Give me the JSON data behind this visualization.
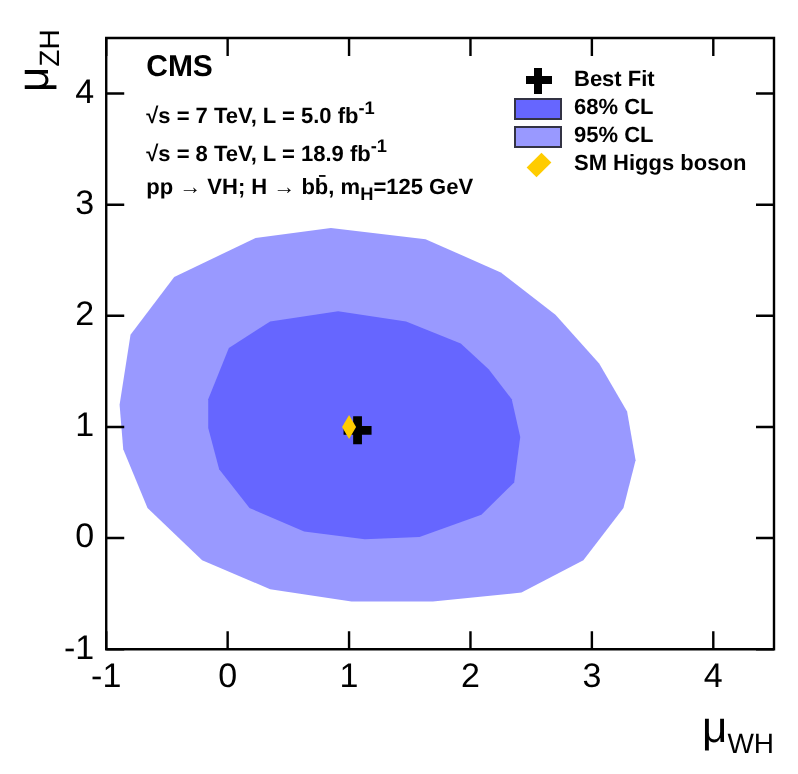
{
  "chart_data": {
    "type": "area",
    "xlabel": "μ$_{WH}$",
    "ylabel": "μ$_{ZH}$",
    "xlim": [
      -1,
      4.5
    ],
    "ylim": [
      -1,
      4.5
    ],
    "xticks": [
      -1,
      0,
      1,
      2,
      3,
      4
    ],
    "yticks": [
      -1,
      0,
      1,
      2,
      3,
      4
    ],
    "grid": false,
    "legend": "top right",
    "annotations": [
      "CMS",
      "√s = 7 TeV, L = 5.0 fb$^{-1}$",
      "√s = 8 TeV, L = 18.9 fb$^{-1}$",
      "pp → VH; H → bb̄, m$_{H}$=125 GeV"
    ],
    "series": [
      {
        "name": "95% CL",
        "color": "#9999ff",
        "x": [
          -0.89,
          -0.8,
          -0.44,
          0.23,
          0.85,
          1.63,
          2.25,
          2.7,
          3.06,
          3.29,
          3.36,
          3.26,
          2.93,
          2.42,
          1.69,
          1.02,
          0.35,
          -0.21,
          -0.66,
          -0.86
        ],
        "values": [
          1.2,
          1.83,
          2.35,
          2.7,
          2.79,
          2.69,
          2.39,
          2.01,
          1.57,
          1.14,
          0.7,
          0.27,
          -0.2,
          -0.49,
          -0.57,
          -0.57,
          -0.46,
          -0.2,
          0.27,
          0.8
        ]
      },
      {
        "name": "68% CL",
        "color": "#6666ff",
        "x": [
          -0.16,
          0.01,
          0.35,
          0.91,
          1.47,
          1.92,
          2.15,
          2.34,
          2.41,
          2.36,
          2.09,
          1.58,
          1.13,
          0.63,
          0.18,
          -0.07,
          -0.16
        ],
        "values": [
          1.25,
          1.71,
          1.95,
          2.04,
          1.95,
          1.75,
          1.52,
          1.25,
          0.91,
          0.5,
          0.21,
          0.01,
          -0.01,
          0.06,
          0.27,
          0.62,
          0.99
        ]
      },
      {
        "name": "Best Fit",
        "type": "scatter",
        "marker": "cross",
        "color": "#000000",
        "x": [
          1.07
        ],
        "values": [
          0.97
        ]
      },
      {
        "name": "SM Higgs boson",
        "type": "scatter",
        "marker": "diamond",
        "color": "#ffcc00",
        "x": [
          1
        ],
        "values": [
          1
        ]
      }
    ]
  }
}
